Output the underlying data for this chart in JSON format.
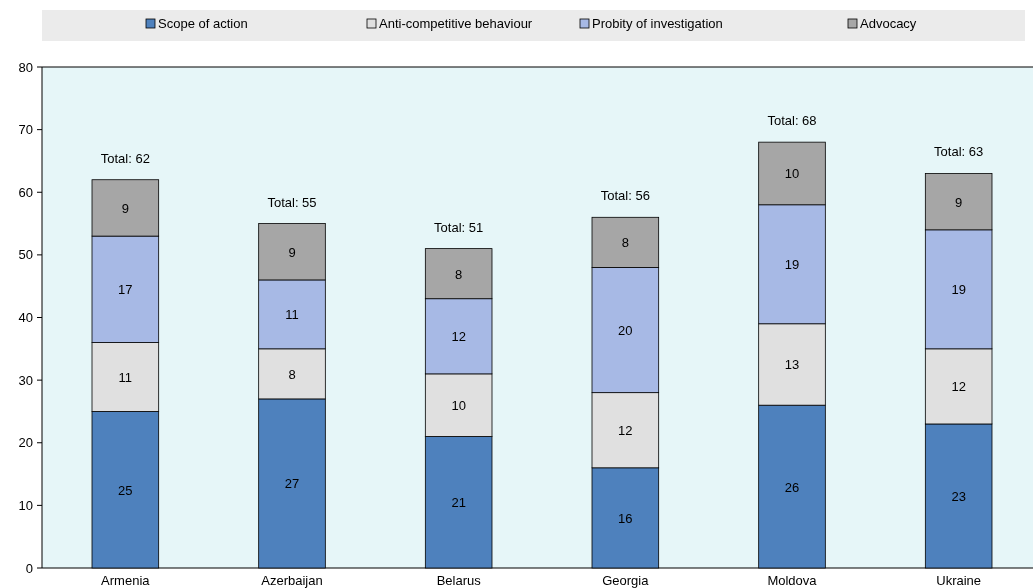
{
  "chart_data": {
    "type": "bar",
    "stacked": true,
    "categories": [
      "Armenia",
      "Azerbaijan",
      "Belarus",
      "Georgia",
      "Moldova",
      "Ukraine"
    ],
    "series": [
      {
        "name": "Scope of action",
        "color": "#4e81bd",
        "values": [
          25,
          27,
          21,
          16,
          26,
          23
        ]
      },
      {
        "name": "Anti-competitive behaviour",
        "color": "#e0e0e0",
        "values": [
          11,
          8,
          10,
          12,
          13,
          12
        ]
      },
      {
        "name": "Probity of investigation",
        "color": "#a7b9e5",
        "values": [
          17,
          11,
          12,
          20,
          19,
          19
        ]
      },
      {
        "name": "Advocacy",
        "color": "#a6a6a6",
        "values": [
          9,
          9,
          8,
          8,
          10,
          9
        ]
      }
    ],
    "ylim": [
      0,
      80
    ],
    "yticks": [
      0,
      10,
      20,
      30,
      40,
      50,
      60,
      70,
      80
    ],
    "data_labels": true,
    "totals": [
      "Total: 62",
      "Total: 55",
      "Total: 51",
      "Total: 56",
      "Total: 68",
      "Total: 63"
    ],
    "legend": "top",
    "grid": false
  }
}
